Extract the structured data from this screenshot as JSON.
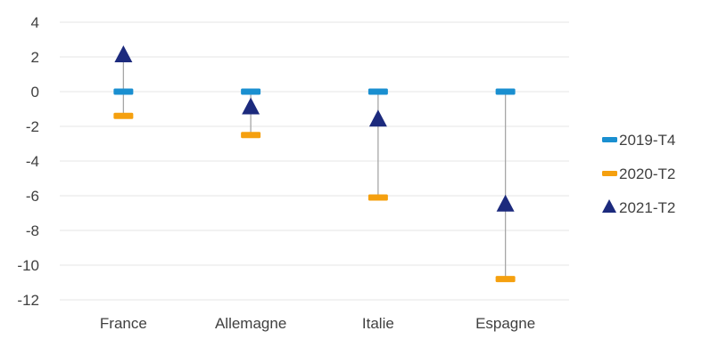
{
  "chart_data": {
    "type": "scatter",
    "title": "",
    "xlabel": "",
    "ylabel": "",
    "categories": [
      "France",
      "Allemagne",
      "Italie",
      "Espagne"
    ],
    "ylim": [
      -12,
      4
    ],
    "yticks": [
      4,
      2,
      0,
      -2,
      -4,
      -6,
      -8,
      -10,
      -12
    ],
    "grid": true,
    "legend_position": "right",
    "series": [
      {
        "name": "2019-T4",
        "marker": "dash",
        "color": "#1a8fd0",
        "values": [
          0,
          0,
          0,
          0
        ]
      },
      {
        "name": "2020-T2",
        "marker": "dash",
        "color": "#f5a00f",
        "values": [
          -1.4,
          -2.5,
          -6.1,
          -10.8
        ]
      },
      {
        "name": "2021-T2",
        "marker": "triangle",
        "color": "#1c2a7d",
        "values": [
          2.1,
          -0.9,
          -1.6,
          -6.5
        ]
      }
    ],
    "range_line_color": "#a6a6a6"
  }
}
